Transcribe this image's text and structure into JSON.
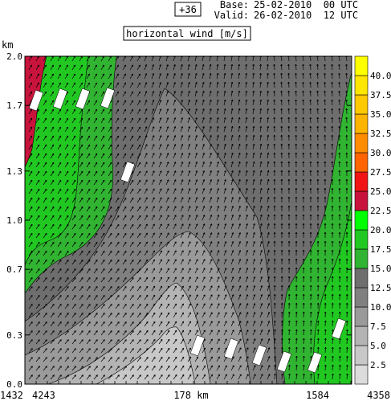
{
  "chart_data": {
    "type": "heatmap",
    "header": {
      "lead": "+36",
      "base_label": "Base:",
      "base_value": "25-02-2010  00 UTC",
      "valid_label": "Valid:",
      "valid_value": "26-02-2010  12 UTC"
    },
    "title": "horizontal wind [m/s]",
    "y_unit": "km",
    "ylim": [
      0.0,
      2.0
    ],
    "y_ticks": [
      {
        "value": 0.0,
        "label": "0.0"
      },
      {
        "value": 0.3,
        "label": "0.3"
      },
      {
        "value": 0.7,
        "label": "0.7"
      },
      {
        "value": 1.0,
        "label": "1.0"
      },
      {
        "value": 1.3,
        "label": "1.3"
      },
      {
        "value": 1.7,
        "label": "1.7"
      },
      {
        "value": 2.0,
        "label": "2.0"
      }
    ],
    "x_labels": {
      "left_outer": "1432",
      "left": "4243",
      "center": "178 km",
      "right": "1584",
      "right_outer": "4358"
    },
    "colorbar": {
      "levels": [
        2.5,
        5.0,
        7.5,
        10.0,
        12.5,
        15.0,
        17.5,
        20.0,
        22.5,
        25.0,
        27.5,
        30.0,
        32.5,
        35.0,
        37.5,
        40.0
      ],
      "labels": [
        "2.5",
        "5.0",
        "7.5",
        "10.0",
        "12.5",
        "15.0",
        "17.5",
        "20.0",
        "22.5",
        "25.0",
        "27.5",
        "30.0",
        "32.5",
        "35.0",
        "37.5",
        "40.0"
      ],
      "colors": [
        "#dcdcdc",
        "#c8c8c8",
        "#b4b4b4",
        "#9a9a9a",
        "#808080",
        "#6e6e6e",
        "#31b431",
        "#21c821",
        "#00ff00",
        "#c8143c",
        "#f01414",
        "#ff6400",
        "#ff8c00",
        "#ffb400",
        "#ffc800",
        "#ffe600",
        "#ffff00"
      ]
    },
    "grid": false
  }
}
